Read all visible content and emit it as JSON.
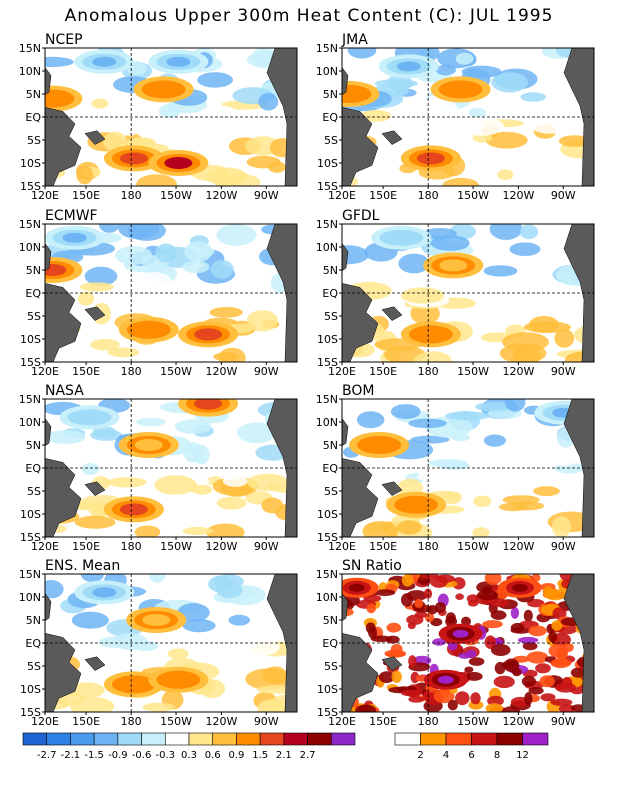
{
  "title": "Anomalous Upper 300m Heat Content (C): JUL 1995",
  "x_ticks": [
    "120E",
    "150E",
    "180",
    "150W",
    "120W",
    "90W"
  ],
  "y_ticks": [
    "15N",
    "10N",
    "5N",
    "EQ",
    "5S",
    "10S",
    "15S"
  ],
  "panels": [
    {
      "name": "NCEP",
      "kind": "anom"
    },
    {
      "name": "JMA",
      "kind": "anom"
    },
    {
      "name": "ECMWF",
      "kind": "anom"
    },
    {
      "name": "GFDL",
      "kind": "anom"
    },
    {
      "name": "NASA",
      "kind": "anom"
    },
    {
      "name": "BOM",
      "kind": "anom"
    },
    {
      "name": "ENS. Mean",
      "kind": "anom"
    },
    {
      "name": "SN Ratio",
      "kind": "sn"
    }
  ],
  "colorbar_anom": {
    "labels": [
      "-2.7",
      "-2.1",
      "-1.5",
      "-0.9",
      "-0.6",
      "-0.3",
      "0.3",
      "0.6",
      "0.9",
      "1.5",
      "2.1",
      "2.7"
    ],
    "colors": [
      "#1e64d2",
      "#2e82e6",
      "#4a9cf0",
      "#6eb4f4",
      "#a0dcf8",
      "#c8f0fa",
      "#ffffff",
      "#ffe68c",
      "#ffbe3c",
      "#ff8c00",
      "#e6461e",
      "#b4001e",
      "#8c0000",
      "#8c28c8"
    ]
  },
  "colorbar_sn": {
    "labels": [
      "2",
      "4",
      "6",
      "8",
      "12"
    ],
    "colors": [
      "#ffffff",
      "#ff9600",
      "#ff5014",
      "#c81414",
      "#8c0000",
      "#a020c8"
    ]
  },
  "chart_data": [
    {
      "type": "heatmap",
      "title": "NCEP",
      "xlim": [
        "120E",
        "70W"
      ],
      "ylim": [
        "15S",
        "15N"
      ],
      "features": [
        {
          "lon": "180",
          "lat": "9S",
          "value": 1.5
        },
        {
          "lon": "150W",
          "lat": "10S",
          "value": 2.1
        },
        {
          "lon": "160W",
          "lat": "6N",
          "value": 0.9
        },
        {
          "lon": "125E",
          "lat": "4N",
          "value": 0.9
        },
        {
          "lon": "160E",
          "lat": "12N",
          "value": -1.5
        },
        {
          "lon": "150W",
          "lat": "12N",
          "value": -1.5
        }
      ]
    },
    {
      "type": "heatmap",
      "title": "JMA",
      "xlim": [
        "120E",
        "70W"
      ],
      "ylim": [
        "15S",
        "15N"
      ],
      "features": [
        {
          "lon": "180",
          "lat": "9S",
          "value": 1.5
        },
        {
          "lon": "125E",
          "lat": "5N",
          "value": 0.9
        },
        {
          "lon": "160W",
          "lat": "6N",
          "value": 0.9
        },
        {
          "lon": "165E",
          "lat": "11N",
          "value": -1.5
        }
      ]
    },
    {
      "type": "heatmap",
      "title": "ECMWF",
      "xlim": [
        "120E",
        "70W"
      ],
      "ylim": [
        "15S",
        "15N"
      ],
      "features": [
        {
          "lon": "170W",
          "lat": "8S",
          "value": 0.9
        },
        {
          "lon": "130W",
          "lat": "9S",
          "value": 1.5
        },
        {
          "lon": "125E",
          "lat": "5N",
          "value": 1.5
        },
        {
          "lon": "140E",
          "lat": "12N",
          "value": -1.5
        }
      ]
    },
    {
      "type": "heatmap",
      "title": "GFDL",
      "xlim": [
        "120E",
        "70W"
      ],
      "ylim": [
        "15S",
        "15N"
      ],
      "features": [
        {
          "lon": "180",
          "lat": "9S",
          "value": 0.9
        },
        {
          "lon": "165W",
          "lat": "6N",
          "value": 0.6
        },
        {
          "lon": "160E",
          "lat": "12N",
          "value": -0.9
        }
      ]
    },
    {
      "type": "heatmap",
      "title": "NASA",
      "xlim": [
        "120E",
        "70W"
      ],
      "ylim": [
        "15S",
        "15N"
      ],
      "features": [
        {
          "lon": "180",
          "lat": "9S",
          "value": 1.5
        },
        {
          "lon": "130W",
          "lat": "14N",
          "value": 1.5
        },
        {
          "lon": "170W",
          "lat": "5N",
          "value": 0.6
        },
        {
          "lon": "150E",
          "lat": "11N",
          "value": -0.9
        }
      ]
    },
    {
      "type": "heatmap",
      "title": "BOM",
      "xlim": [
        "120E",
        "70W"
      ],
      "ylim": [
        "15S",
        "15N"
      ],
      "features": [
        {
          "lon": "145E",
          "lat": "5N",
          "value": 0.9
        },
        {
          "lon": "170E",
          "lat": "8S",
          "value": 0.9
        },
        {
          "lon": "90W",
          "lat": "12N",
          "value": -1.5
        }
      ]
    },
    {
      "type": "heatmap",
      "title": "ENS. Mean",
      "xlim": [
        "120E",
        "70W"
      ],
      "ylim": [
        "15S",
        "15N"
      ],
      "features": [
        {
          "lon": "180",
          "lat": "9S",
          "value": 0.9
        },
        {
          "lon": "150W",
          "lat": "8S",
          "value": 0.9
        },
        {
          "lon": "165W",
          "lat": "5N",
          "value": 0.6
        },
        {
          "lon": "160E",
          "lat": "11N",
          "value": -1.5
        }
      ]
    },
    {
      "type": "heatmap",
      "title": "SN Ratio",
      "xlim": [
        "120E",
        "70W"
      ],
      "ylim": [
        "15S",
        "15N"
      ],
      "features": [
        {
          "lon": "170W",
          "lat": "8S",
          "value": 12
        },
        {
          "lon": "160W",
          "lat": "2N",
          "value": 12
        },
        {
          "lon": "130E",
          "lat": "12N",
          "value": 8
        },
        {
          "lon": "120W",
          "lat": "12N",
          "value": 8
        }
      ]
    }
  ]
}
